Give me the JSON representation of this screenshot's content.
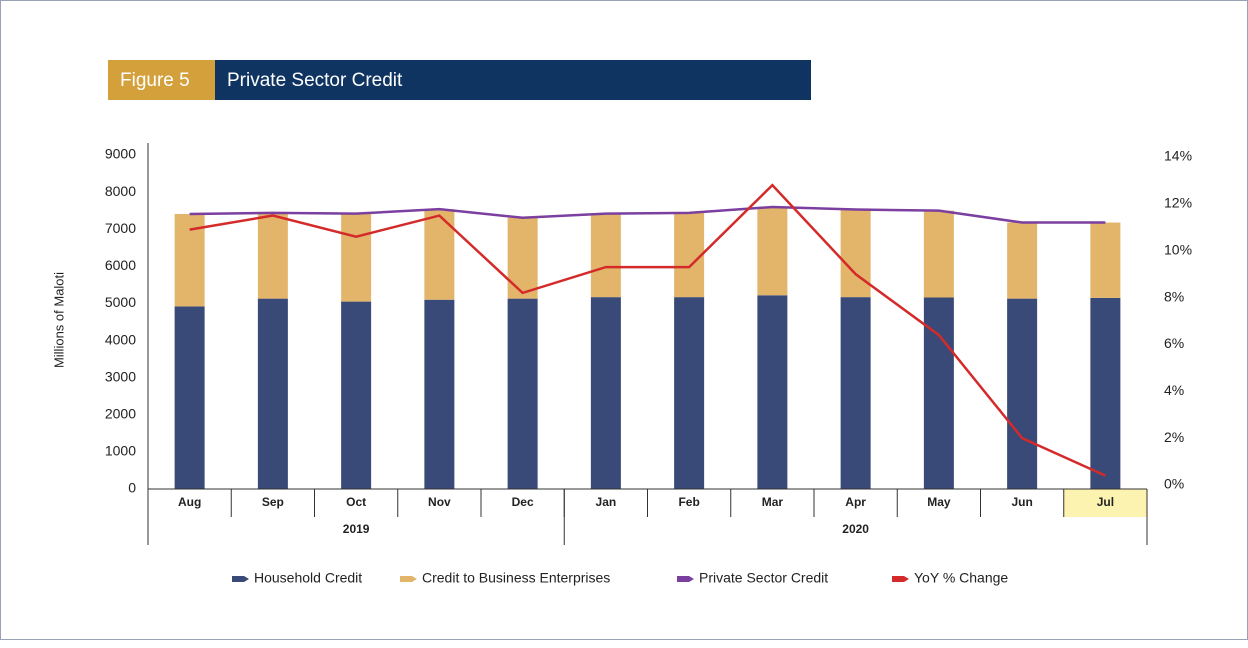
{
  "chart_data": {
    "type": "bar-line",
    "figure_label": "Figure 5",
    "title": "Private Sector Credit",
    "y_label": "Millions of Maloti",
    "categories": [
      "Aug",
      "Sep",
      "Oct",
      "Nov",
      "Dec",
      "Jan",
      "Feb",
      "Mar",
      "Apr",
      "May",
      "Jun",
      "Jul"
    ],
    "groups": [
      {
        "label": "2019",
        "count": 5
      },
      {
        "label": "2020",
        "count": 7
      }
    ],
    "highlight_index": 11,
    "series": [
      {
        "name": "Household Credit",
        "type": "bar",
        "color": "#3a4a78",
        "values": [
          4920,
          5130,
          5050,
          5100,
          5130,
          5170,
          5170,
          5220,
          5170,
          5160,
          5130,
          5150
        ]
      },
      {
        "name": "Credit to Business Enterprises",
        "type": "bar",
        "color": "#e2b56b",
        "values": [
          2490,
          2310,
          2370,
          2440,
          2180,
          2250,
          2270,
          2380,
          2360,
          2340,
          2050,
          2030
        ]
      },
      {
        "name": "Private Sector Credit",
        "type": "line",
        "color": "#7b3fa0",
        "values": [
          7410,
          7440,
          7420,
          7540,
          7310,
          7420,
          7440,
          7600,
          7530,
          7500,
          7180,
          7180
        ]
      },
      {
        "name": "YoY % Change",
        "type": "line",
        "axis": "y2",
        "color": "#d42a2a",
        "values": [
          10.9,
          11.5,
          10.6,
          11.5,
          8.2,
          9.3,
          9.3,
          12.8,
          9.0,
          6.4,
          2.0,
          0.4
        ]
      }
    ],
    "ylim": [
      0,
      9000
    ],
    "yticks": [
      0,
      1000,
      2000,
      3000,
      4000,
      5000,
      6000,
      7000,
      8000,
      9000
    ],
    "y2lim": [
      0,
      14
    ],
    "y2ticks": [
      {
        "value": 0,
        "label": "0%"
      },
      {
        "value": 2,
        "label": "2%"
      },
      {
        "value": 4,
        "label": "4%"
      },
      {
        "value": 6,
        "label": "6%"
      },
      {
        "value": 8,
        "label": "8%"
      },
      {
        "value": 10,
        "label": "10%"
      },
      {
        "value": 12,
        "label": "12%"
      },
      {
        "value": 14,
        "label": "14%"
      }
    ],
    "legend": "bottom"
  }
}
